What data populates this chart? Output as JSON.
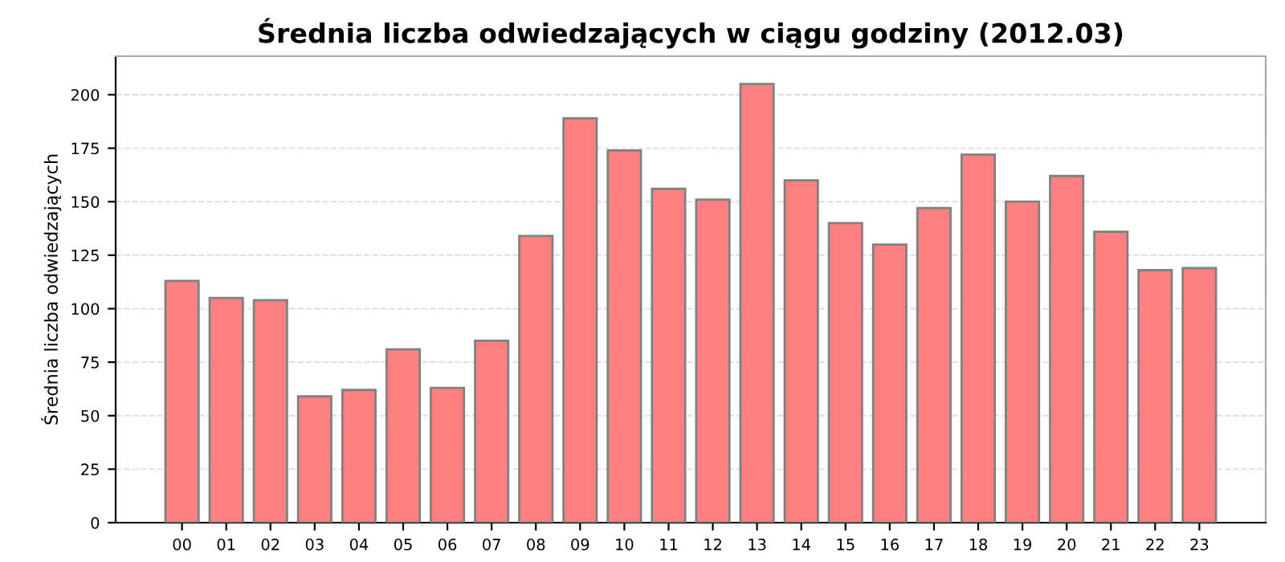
{
  "chart_data": {
    "type": "bar",
    "title": "Średnia liczba odwiedzających w ciągu godziny (2012.03)",
    "ylabel": "Średnia liczba odwiedzających",
    "categories": [
      "00",
      "01",
      "02",
      "03",
      "04",
      "05",
      "06",
      "07",
      "08",
      "09",
      "10",
      "11",
      "12",
      "13",
      "14",
      "15",
      "16",
      "17",
      "18",
      "19",
      "20",
      "21",
      "22",
      "23"
    ],
    "values": [
      113,
      105,
      104,
      59,
      62,
      81,
      63,
      85,
      134,
      189,
      174,
      156,
      151,
      205,
      160,
      140,
      130,
      147,
      172,
      150,
      162,
      136,
      118,
      119
    ],
    "color": "#ff8080",
    "ylim": [
      0,
      218
    ],
    "yticks": [
      0,
      25,
      50,
      75,
      100,
      125,
      150,
      175,
      200
    ],
    "grid": "y"
  }
}
